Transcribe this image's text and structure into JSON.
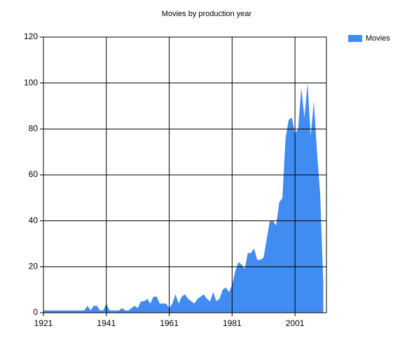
{
  "chart_data": {
    "type": "area",
    "title": "Movies by production year",
    "x": [
      1921,
      1922,
      1923,
      1924,
      1925,
      1926,
      1927,
      1928,
      1929,
      1930,
      1931,
      1932,
      1933,
      1934,
      1935,
      1936,
      1937,
      1938,
      1939,
      1940,
      1941,
      1942,
      1943,
      1944,
      1945,
      1946,
      1947,
      1948,
      1949,
      1950,
      1951,
      1952,
      1953,
      1954,
      1955,
      1956,
      1957,
      1958,
      1959,
      1960,
      1961,
      1962,
      1963,
      1964,
      1965,
      1966,
      1967,
      1968,
      1969,
      1970,
      1971,
      1972,
      1973,
      1974,
      1975,
      1976,
      1977,
      1978,
      1979,
      1980,
      1981,
      1982,
      1983,
      1984,
      1985,
      1986,
      1987,
      1988,
      1989,
      1990,
      1991,
      1992,
      1993,
      1994,
      1995,
      1996,
      1997,
      1998,
      1999,
      2000,
      2001,
      2002,
      2003,
      2004,
      2005,
      2006,
      2007,
      2008,
      2009,
      2010
    ],
    "series": [
      {
        "name": "Movies",
        "color": "#418cf0",
        "values": [
          1,
          1,
          1,
          1,
          1,
          1,
          1,
          1,
          1,
          1,
          1,
          1,
          1,
          1,
          3,
          1,
          3,
          3,
          1,
          1,
          4,
          1,
          1,
          1,
          1,
          2,
          1,
          1,
          2,
          3,
          2,
          5,
          5,
          6,
          4,
          7,
          7,
          4,
          4,
          4,
          2,
          4,
          8,
          4,
          7,
          8,
          6,
          5,
          4,
          6,
          7,
          8,
          6,
          5,
          9,
          5,
          6,
          10,
          11,
          9,
          12,
          18,
          22,
          21,
          19,
          26,
          26,
          28,
          23,
          23,
          24,
          32,
          40,
          40,
          38,
          48,
          50,
          76,
          84,
          85,
          78,
          80,
          98,
          85,
          100,
          77,
          92,
          70,
          52,
          13
        ]
      }
    ],
    "xlim": [
      1921,
      2011
    ],
    "xticks": [
      1921,
      1941,
      1961,
      1981,
      2001
    ],
    "ylim": [
      0,
      120
    ],
    "yticks": [
      0,
      20,
      40,
      60,
      80,
      100,
      120
    ],
    "grid": true,
    "legend": "top-right"
  }
}
